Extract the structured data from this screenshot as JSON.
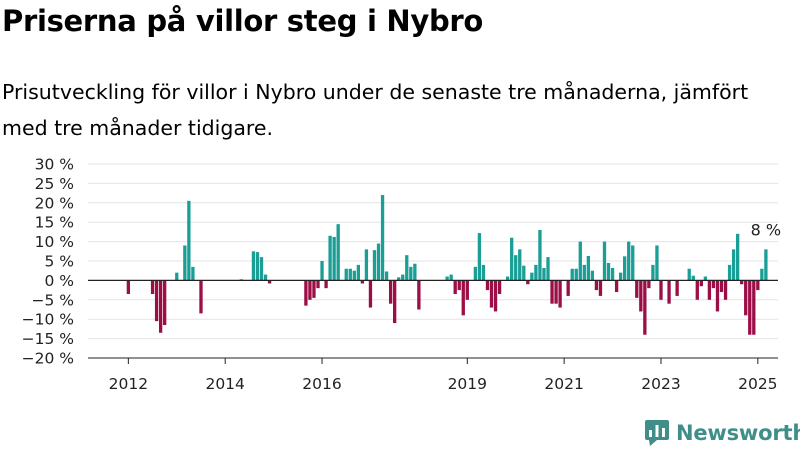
{
  "title": "Priserna på villor steg i Nybro",
  "subtitle": "Prisutveckling för villor i Nybro under de senaste tre månaderna, jämfört med tre månader tidigare.",
  "brand": "Newsworthy",
  "colors": {
    "positive": "#1a9e96",
    "negative": "#9b0e46",
    "grid": "#e3e3e3",
    "axis": "#222222",
    "brand": "#3f8f88"
  },
  "icons": [
    "newsworthy-logo-icon"
  ],
  "chart_data": {
    "type": "bar",
    "title": "Priserna på villor steg i Nybro",
    "subtitle": "Prisutveckling för villor i Nybro under de senaste tre månaderna, jämfört med tre månader tidigare.",
    "ylim": [
      -20,
      30
    ],
    "y_ticks": [
      30,
      25,
      20,
      15,
      10,
      5,
      0,
      -5,
      -10,
      -15,
      -20
    ],
    "y_tick_labels": [
      "30 %",
      "25 %",
      "20 %",
      "15 %",
      "10 %",
      "5 %",
      "0 %",
      "−5 %",
      "−10 %",
      "−15 %",
      "−20 %"
    ],
    "x_ticks": [
      2012,
      2014,
      2016,
      2019,
      2021,
      2023,
      2025
    ],
    "x_tick_labels": [
      "2012",
      "2014",
      "2016",
      "2019",
      "2021",
      "2023",
      "2025"
    ],
    "x_start": "2011-03",
    "x_end": "2025-06",
    "grid": true,
    "annotation": {
      "text": "8 %",
      "date": "2025-03",
      "value": 8
    },
    "series": [
      {
        "points": [
          [
            "2012-01",
            -3.5
          ],
          [
            "2012-07",
            -3.5
          ],
          [
            "2012-08",
            -10.5
          ],
          [
            "2012-09",
            -13.5
          ],
          [
            "2012-10",
            -11.5
          ],
          [
            "2013-01",
            2
          ],
          [
            "2013-03",
            9
          ],
          [
            "2013-04",
            20.5
          ],
          [
            "2013-05",
            3.5
          ],
          [
            "2013-07",
            -8.5
          ],
          [
            "2014-05",
            0.3
          ],
          [
            "2014-08",
            7.5
          ],
          [
            "2014-09",
            7.3
          ],
          [
            "2014-10",
            6
          ],
          [
            "2014-11",
            1.5
          ],
          [
            "2014-12",
            -0.8
          ],
          [
            "2015-09",
            -6.5
          ],
          [
            "2015-10",
            -5
          ],
          [
            "2015-11",
            -4.5
          ],
          [
            "2015-12",
            -2
          ],
          [
            "2016-01",
            5
          ],
          [
            "2016-02",
            -2
          ],
          [
            "2016-03",
            11.5
          ],
          [
            "2016-04",
            11.2
          ],
          [
            "2016-05",
            14.5
          ],
          [
            "2016-07",
            3
          ],
          [
            "2016-08",
            3
          ],
          [
            "2016-09",
            2.5
          ],
          [
            "2016-10",
            4
          ],
          [
            "2016-11",
            -0.8
          ],
          [
            "2016-12",
            8
          ],
          [
            "2017-01",
            -7
          ],
          [
            "2017-02",
            7.8
          ],
          [
            "2017-03",
            9.5
          ],
          [
            "2017-04",
            22
          ],
          [
            "2017-05",
            2.3
          ],
          [
            "2017-06",
            -6
          ],
          [
            "2017-07",
            -11
          ],
          [
            "2017-08",
            0.8
          ],
          [
            "2017-09",
            1.5
          ],
          [
            "2017-10",
            6.5
          ],
          [
            "2017-11",
            3.5
          ],
          [
            "2017-12",
            4.3
          ],
          [
            "2018-01",
            -7.5
          ],
          [
            "2018-08",
            1
          ],
          [
            "2018-09",
            1.5
          ],
          [
            "2018-10",
            -3.5
          ],
          [
            "2018-11",
            -2.5
          ],
          [
            "2018-12",
            -9
          ],
          [
            "2019-01",
            -5
          ],
          [
            "2019-03",
            3.5
          ],
          [
            "2019-04",
            12.2
          ],
          [
            "2019-05",
            4
          ],
          [
            "2019-06",
            -2.5
          ],
          [
            "2019-07",
            -7
          ],
          [
            "2019-08",
            -8
          ],
          [
            "2019-09",
            -3.5
          ],
          [
            "2019-11",
            1
          ],
          [
            "2019-12",
            11
          ],
          [
            "2020-01",
            6.5
          ],
          [
            "2020-02",
            8
          ],
          [
            "2020-03",
            3.8
          ],
          [
            "2020-04",
            -1
          ],
          [
            "2020-05",
            2
          ],
          [
            "2020-06",
            4
          ],
          [
            "2020-07",
            13
          ],
          [
            "2020-08",
            3.2
          ],
          [
            "2020-09",
            6
          ],
          [
            "2020-10",
            -6
          ],
          [
            "2020-11",
            -6
          ],
          [
            "2020-12",
            -7
          ],
          [
            "2021-02",
            -4
          ],
          [
            "2021-03",
            3
          ],
          [
            "2021-04",
            3
          ],
          [
            "2021-05",
            10
          ],
          [
            "2021-06",
            4
          ],
          [
            "2021-07",
            6.3
          ],
          [
            "2021-08",
            2.5
          ],
          [
            "2021-09",
            -2.5
          ],
          [
            "2021-10",
            -4
          ],
          [
            "2021-11",
            10
          ],
          [
            "2021-12",
            4.5
          ],
          [
            "2022-01",
            3.2
          ],
          [
            "2022-02",
            -3
          ],
          [
            "2022-03",
            2
          ],
          [
            "2022-04",
            6.2
          ],
          [
            "2022-05",
            10
          ],
          [
            "2022-06",
            9
          ],
          [
            "2022-07",
            -4.5
          ],
          [
            "2022-08",
            -8
          ],
          [
            "2022-09",
            -14
          ],
          [
            "2022-10",
            -2
          ],
          [
            "2022-11",
            4
          ],
          [
            "2022-12",
            9
          ],
          [
            "2023-01",
            -5
          ],
          [
            "2023-03",
            -6
          ],
          [
            "2023-05",
            -4
          ],
          [
            "2023-08",
            3
          ],
          [
            "2023-09",
            1.2
          ],
          [
            "2023-10",
            -5
          ],
          [
            "2023-11",
            -1.5
          ],
          [
            "2023-12",
            1
          ],
          [
            "2024-01",
            -5
          ],
          [
            "2024-02",
            -2
          ],
          [
            "2024-03",
            -8
          ],
          [
            "2024-04",
            -3
          ],
          [
            "2024-05",
            -5
          ],
          [
            "2024-06",
            4
          ],
          [
            "2024-07",
            8
          ],
          [
            "2024-08",
            12
          ],
          [
            "2024-09",
            -1
          ],
          [
            "2024-10",
            -9
          ],
          [
            "2024-11",
            -14
          ],
          [
            "2024-12",
            -14
          ],
          [
            "2025-01",
            -2.5
          ],
          [
            "2025-02",
            3
          ],
          [
            "2025-03",
            8
          ]
        ]
      }
    ]
  }
}
